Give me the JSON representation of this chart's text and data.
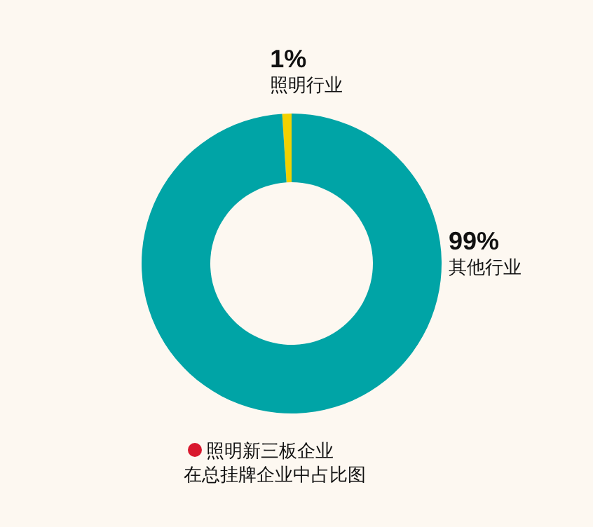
{
  "chart_data": {
    "type": "donut",
    "title": "照明新三板企业在总挂牌企业中占比图",
    "categories": [
      "照明行业",
      "其他行业"
    ],
    "values": [
      1,
      99
    ],
    "colors": [
      "#f2d100",
      "#00a4a6"
    ],
    "value_labels": [
      "1%",
      "99%"
    ]
  }
}
